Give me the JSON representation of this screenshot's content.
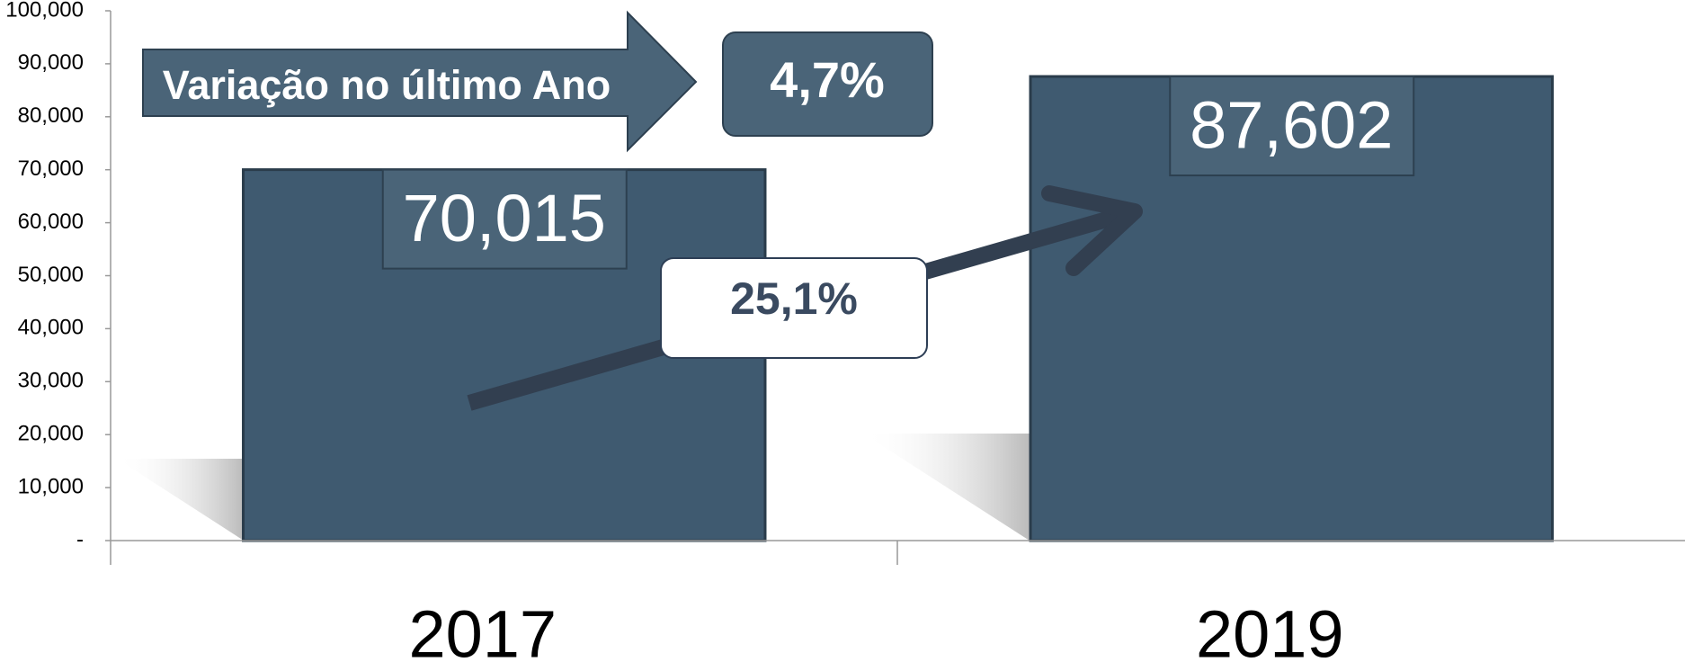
{
  "chart_data": {
    "type": "bar",
    "categories": [
      "2017",
      "2019"
    ],
    "values": [
      70015,
      87602
    ],
    "value_labels": [
      "70,015",
      "87,602"
    ],
    "color": "#3f5a70",
    "ylim": [
      0,
      100000
    ],
    "yticks": [
      {
        "value": 0,
        "label": "-"
      },
      {
        "value": 10000,
        "label": "10,000"
      },
      {
        "value": 20000,
        "label": "20,000"
      },
      {
        "value": 30000,
        "label": "30,000"
      },
      {
        "value": 40000,
        "label": "40,000"
      },
      {
        "value": 50000,
        "label": "50,000"
      },
      {
        "value": 60000,
        "label": "60,000"
      },
      {
        "value": 70000,
        "label": "70,000"
      },
      {
        "value": 80000,
        "label": "80,000"
      },
      {
        "value": 90000,
        "label": "90,000"
      },
      {
        "value": 100000,
        "label": "100,000"
      }
    ],
    "grid": false,
    "annotations": [
      "Variação no último Ano",
      "4,7%",
      "25,1%"
    ]
  }
}
